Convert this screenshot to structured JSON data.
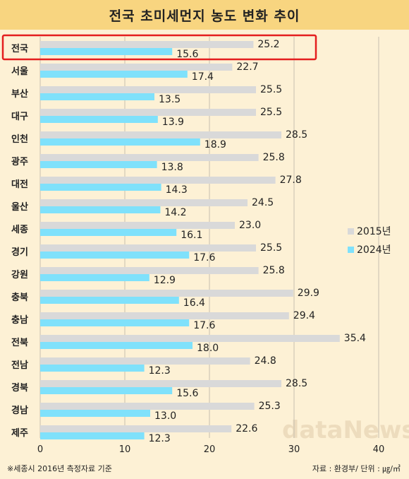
{
  "title": "전국 초미세먼지 농도 변화 추이",
  "footnote": "※세종시 2016년 측정자료 기준",
  "source": "자료 : 환경부/ 단위 : ㎍/㎥",
  "watermark": "dataNews",
  "colors": {
    "s2015": "#d9d9d9",
    "s2024": "#7fe1fb",
    "highlight": "#e41e1e",
    "grid": "#c8c0b0"
  },
  "chart_data": {
    "type": "bar",
    "orientation": "horizontal",
    "categories": [
      "전국",
      "서울",
      "부산",
      "대구",
      "인천",
      "광주",
      "대전",
      "울산",
      "세종",
      "경기",
      "강원",
      "충북",
      "충남",
      "전북",
      "전남",
      "경북",
      "경남",
      "제주"
    ],
    "series": [
      {
        "name": "2015년",
        "values": [
          25.2,
          22.7,
          25.5,
          25.5,
          28.5,
          25.8,
          27.8,
          24.5,
          23.0,
          25.5,
          25.8,
          29.9,
          29.4,
          35.4,
          24.8,
          28.5,
          25.3,
          22.6
        ]
      },
      {
        "name": "2024년",
        "values": [
          15.6,
          17.4,
          13.5,
          13.9,
          18.9,
          13.8,
          14.3,
          14.2,
          16.1,
          17.6,
          12.9,
          16.4,
          17.6,
          18.0,
          12.3,
          15.6,
          13.0,
          12.3
        ]
      }
    ],
    "xlim": [
      0,
      40
    ],
    "xticks": [
      0,
      10,
      20,
      30,
      40
    ],
    "highlighted_category": "전국",
    "legend": "right",
    "grid": "vertical"
  }
}
